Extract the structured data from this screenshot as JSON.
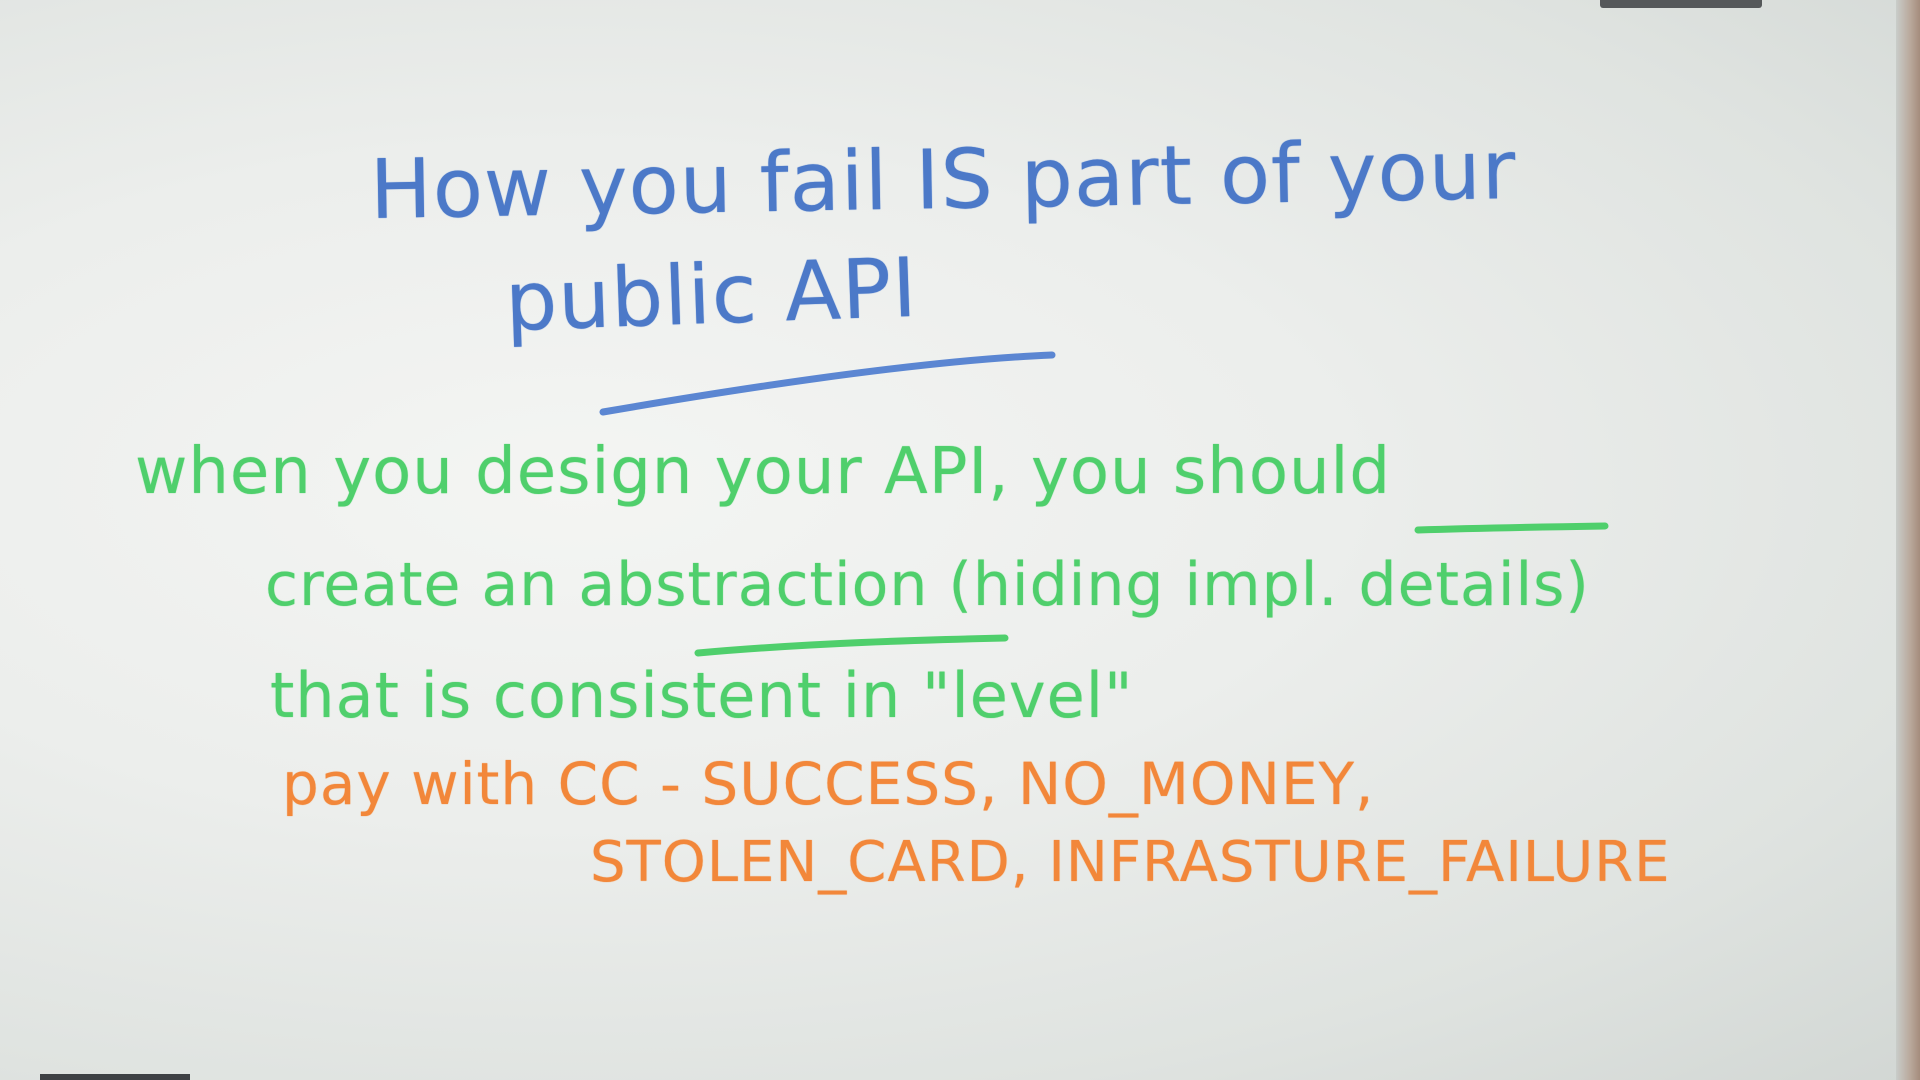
{
  "whiteboard": {
    "title_line_1": "How you fail IS part of your",
    "title_line_2": "public API",
    "body_line_1": "when you design your API, you should",
    "body_line_2": "create an abstraction (hiding impl. details)",
    "body_line_3": "that is consistent in \"level\"",
    "example_line_1": "pay with CC - SUCCESS, NO_MONEY,",
    "example_line_2": "STOLEN_CARD, INFRASTURE_FAILURE"
  },
  "colors": {
    "blue_marker": "#4c79c8",
    "green_marker": "#4fcf6c",
    "orange_marker": "#f2873a",
    "board": "#eceeec"
  }
}
